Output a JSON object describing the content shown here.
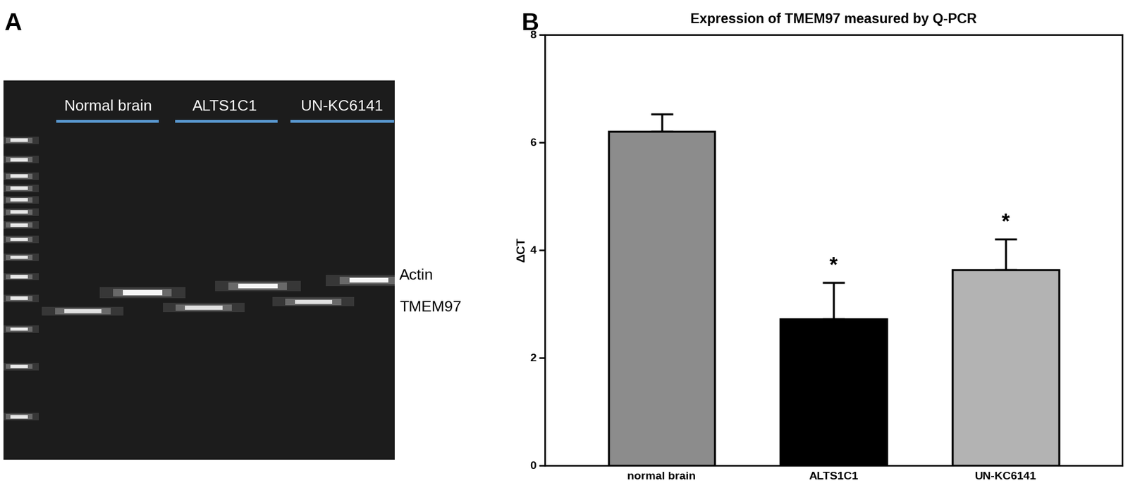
{
  "panel_labels": [
    "A",
    "B"
  ],
  "gel": {
    "lanes": [
      "Normal brain",
      "ALTS1C1",
      "UN-KC6141"
    ],
    "bands": [
      "Actin",
      "TMEM97"
    ]
  },
  "chart_data": {
    "type": "bar",
    "title": "Expression of TMEM97 measured by Q-PCR",
    "y_label": "ΔCT",
    "categories": [
      "normal brain",
      "ALTS1C1",
      "UN-KC6141"
    ],
    "values": [
      6.2,
      2.72,
      3.63
    ],
    "errors": [
      0.33,
      0.67,
      0.57
    ],
    "colors": [
      "#8c8c8c",
      "#000000",
      "#b3b3b3"
    ],
    "ylim": [
      0,
      8
    ],
    "yticks": [
      0,
      2,
      4,
      6,
      8
    ],
    "annotations": [
      {
        "category": "ALTS1C1",
        "text": "*"
      },
      {
        "category": "UN-KC6141",
        "text": "*"
      }
    ]
  }
}
